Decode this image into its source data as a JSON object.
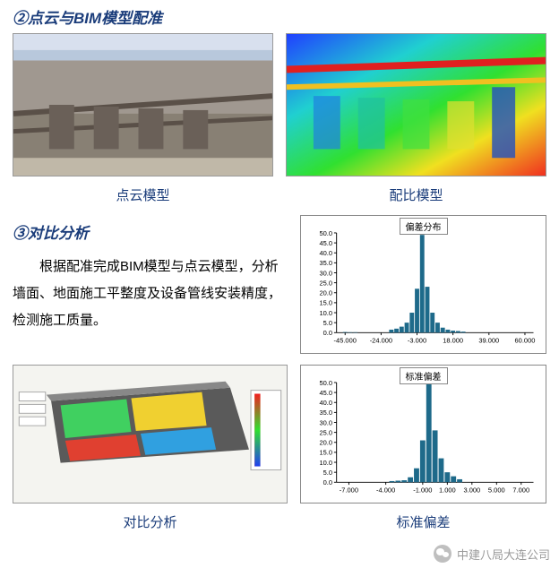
{
  "section1": {
    "title": "②点云与BIM模型配准",
    "img1_caption": "点云模型",
    "img2_caption": "配比模型"
  },
  "section2": {
    "title": "③对比分析",
    "body": "根据配准完成BIM模型与点云模型，分析墙面、地面施工平整度及设备管线安装精度，检测施工质量。"
  },
  "chart1": {
    "title": "偏差分布",
    "type": "bar",
    "x_values": [
      -45.0,
      -24.0,
      -3.0,
      18.0,
      39.0,
      60.0
    ],
    "x_labels": [
      "-45.000",
      "-24.000",
      "-3.000",
      "18.000",
      "39.000",
      "60.000"
    ],
    "bars": [
      {
        "x": -45,
        "h": 0.3
      },
      {
        "x": -42,
        "h": 0.2
      },
      {
        "x": -39,
        "h": 0.2
      },
      {
        "x": -18,
        "h": 1.5
      },
      {
        "x": -15,
        "h": 2
      },
      {
        "x": -12,
        "h": 3
      },
      {
        "x": -9,
        "h": 5
      },
      {
        "x": -6,
        "h": 10
      },
      {
        "x": -3,
        "h": 22
      },
      {
        "x": 0,
        "h": 49
      },
      {
        "x": 3,
        "h": 23
      },
      {
        "x": 6,
        "h": 10
      },
      {
        "x": 9,
        "h": 5
      },
      {
        "x": 12,
        "h": 2.5
      },
      {
        "x": 15,
        "h": 1.5
      },
      {
        "x": 18,
        "h": 1
      },
      {
        "x": 21,
        "h": 0.8
      },
      {
        "x": 24,
        "h": 0.5
      }
    ],
    "y_ticks": [
      0.0,
      5.0,
      10.0,
      15.0,
      20.0,
      25.0,
      30.0,
      35.0,
      40.0,
      45.0,
      50.0
    ],
    "y_max": 50,
    "x_min": -50,
    "x_max": 65,
    "bar_color": "#1e6a8a",
    "axis_color": "#000000",
    "bg": "#ffffff"
  },
  "chart2": {
    "title": "标准偏差",
    "type": "bar",
    "x_values": [
      -7.0,
      -4.0,
      -1.0,
      1.0,
      3.0,
      5.0,
      7.0
    ],
    "x_labels": [
      "-7.000",
      "-4.000",
      "-1.000",
      "1.000",
      "3.000",
      "5.000",
      "7.000"
    ],
    "bars": [
      {
        "x": -3.5,
        "h": 0.6
      },
      {
        "x": -3.0,
        "h": 0.8
      },
      {
        "x": -2.5,
        "h": 1
      },
      {
        "x": -2.0,
        "h": 2.5
      },
      {
        "x": -1.5,
        "h": 7
      },
      {
        "x": -1.0,
        "h": 21
      },
      {
        "x": -0.5,
        "h": 50
      },
      {
        "x": 0.0,
        "h": 26
      },
      {
        "x": 0.5,
        "h": 12
      },
      {
        "x": 1.0,
        "h": 5
      },
      {
        "x": 1.5,
        "h": 3
      },
      {
        "x": 2.0,
        "h": 1.5
      }
    ],
    "y_ticks": [
      0.0,
      5.0,
      10.0,
      15.0,
      20.0,
      25.0,
      30.0,
      35.0,
      40.0,
      45.0,
      50.0
    ],
    "y_max": 50,
    "x_min": -8,
    "x_max": 8,
    "bar_color": "#1e6a8a",
    "axis_color": "#000000",
    "bg": "#ffffff"
  },
  "caption_analysis": "对比分析",
  "caption_stddev": "标准偏差",
  "footer": {
    "source": "中建八局大连公司"
  },
  "colors": {
    "title_blue": "#1a3c7a",
    "gray": "#9a9a9a"
  }
}
